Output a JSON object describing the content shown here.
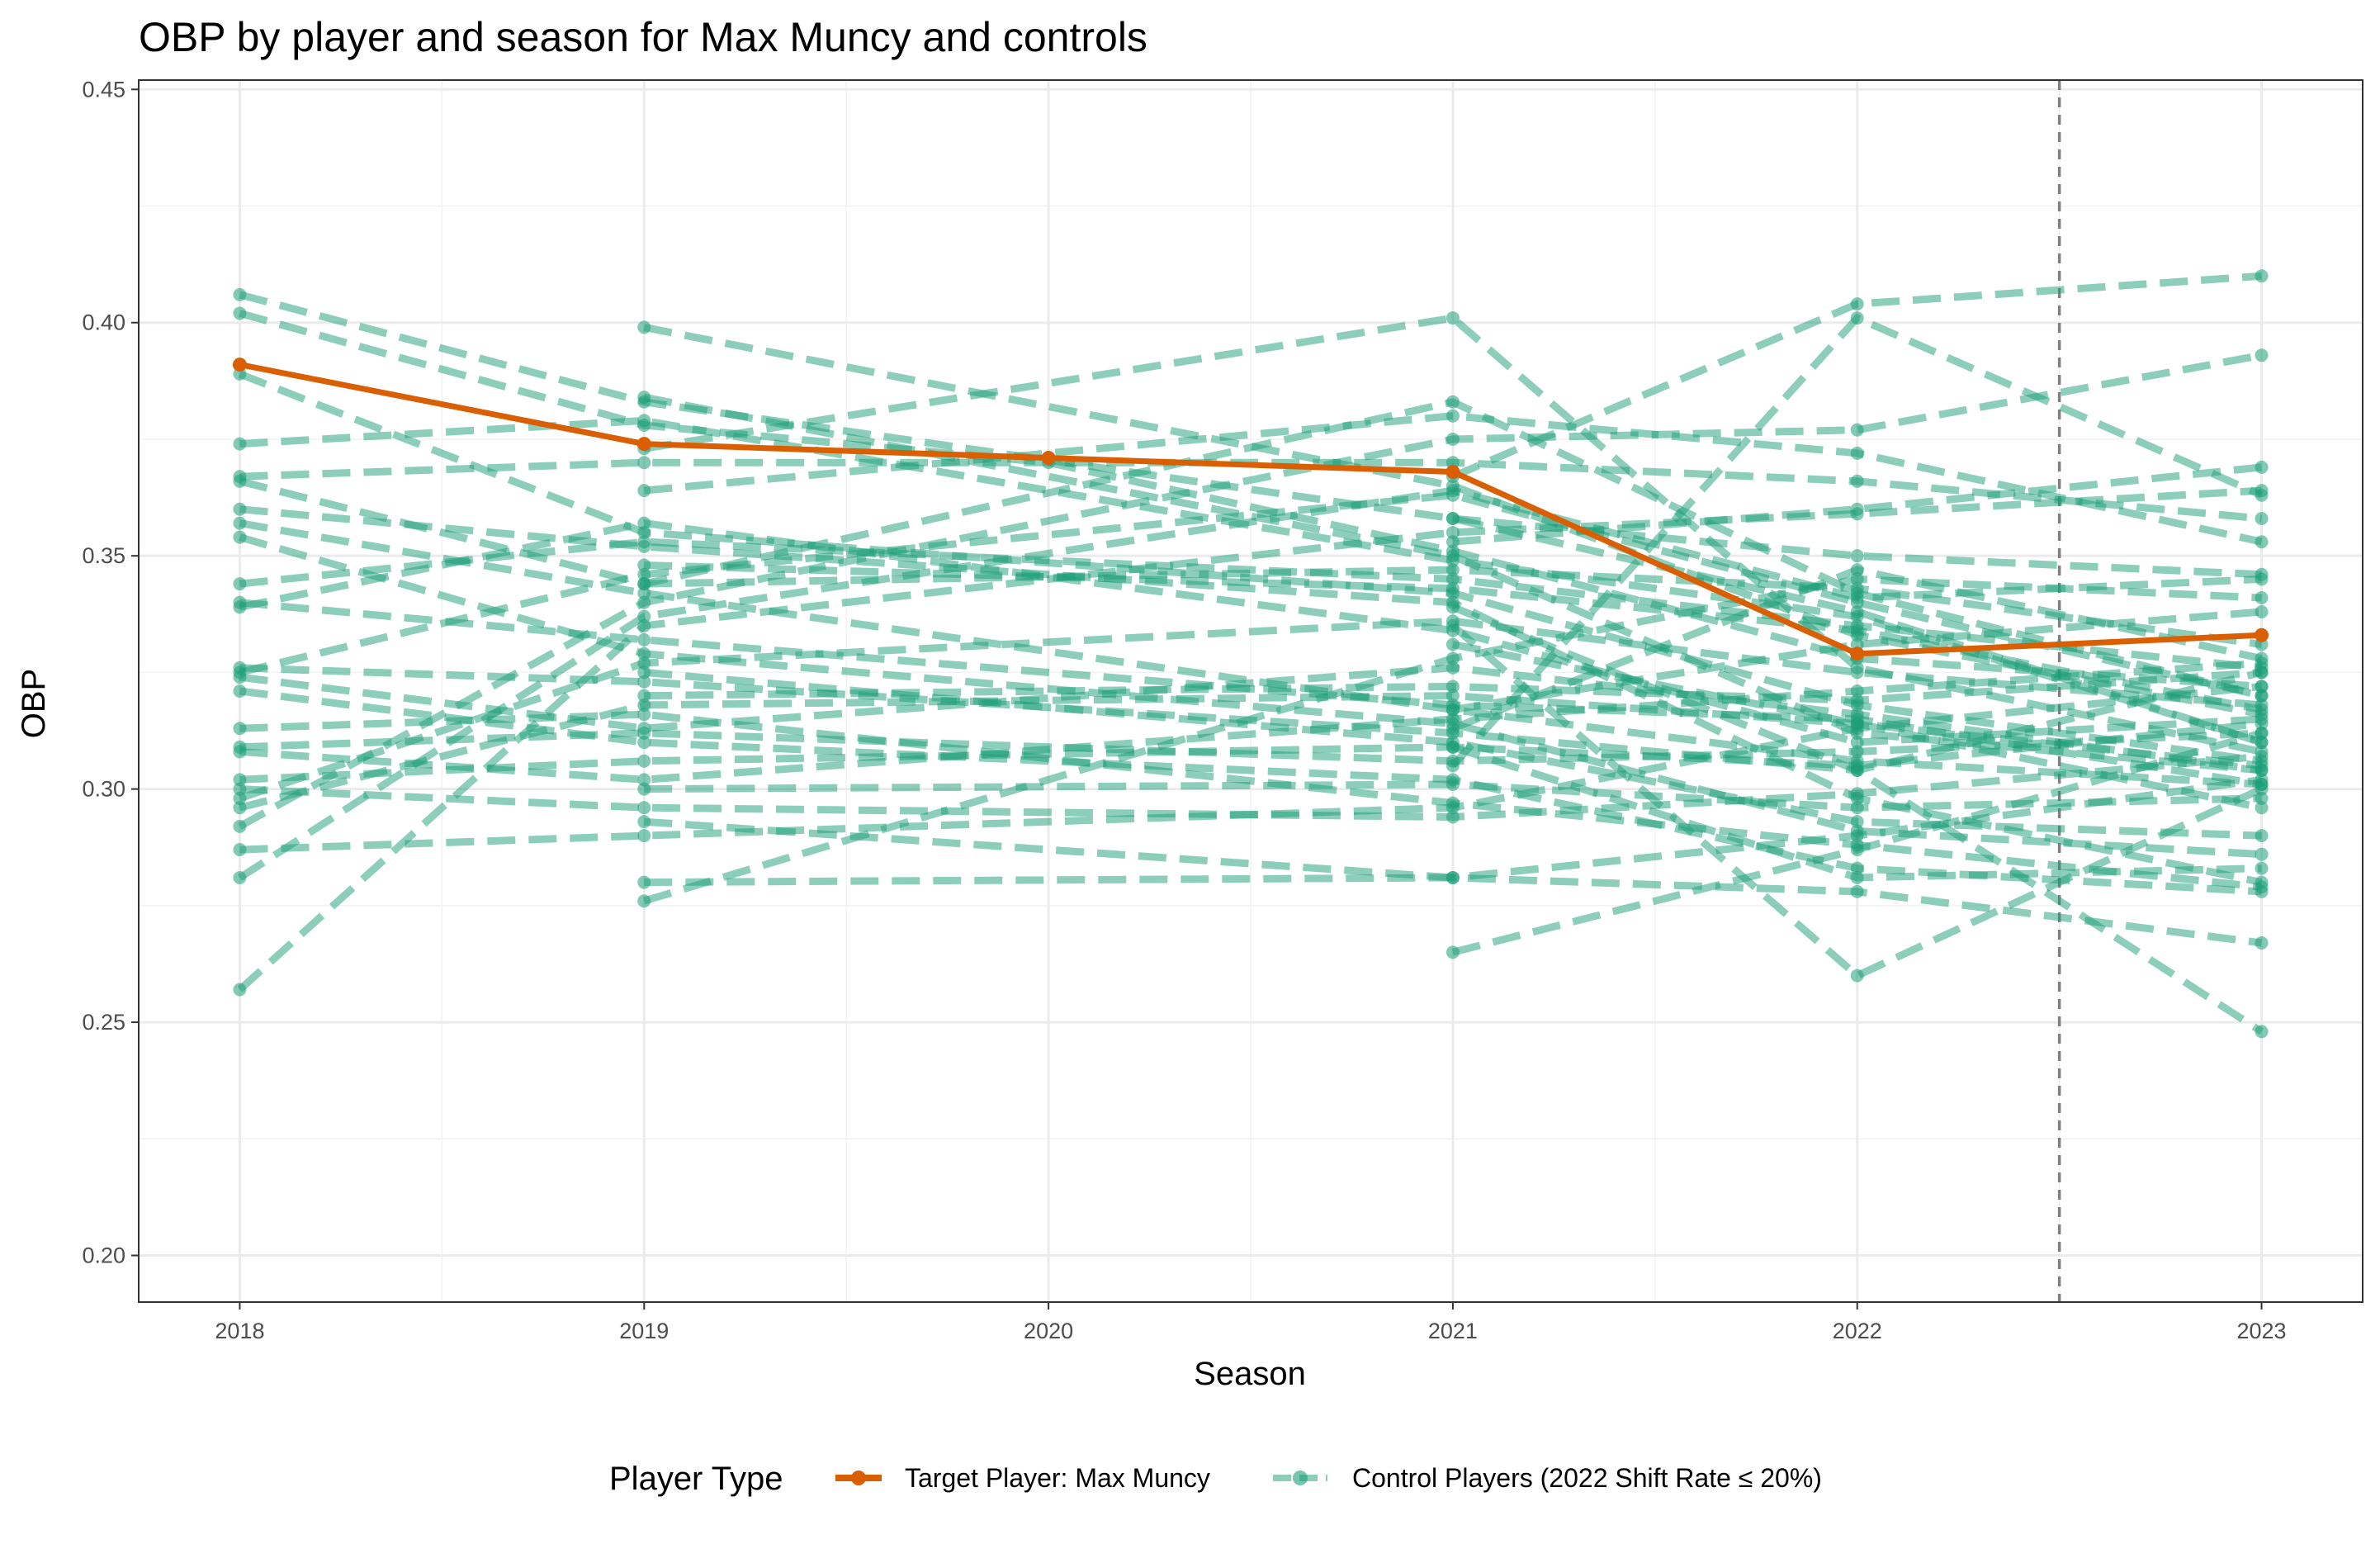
{
  "chart_data": {
    "type": "line",
    "title": "OBP by player and season for Max Muncy and controls",
    "xlabel": "Season",
    "ylabel": "OBP",
    "x_ticks": [
      2018,
      2019,
      2020,
      2021,
      2022,
      2023
    ],
    "x_tick_labels": [
      "2018",
      "2019",
      "2020",
      "2021",
      "2022",
      "2023"
    ],
    "y_ticks": [
      0.2,
      0.25,
      0.3,
      0.35,
      0.4,
      0.45
    ],
    "y_tick_labels": [
      "0.20",
      "0.25",
      "0.30",
      "0.35",
      "0.40",
      "0.45"
    ],
    "xlim": [
      2017.75,
      2023.25
    ],
    "ylim": [
      0.19,
      0.452
    ],
    "grid": true,
    "reference_line_x": 2022.5,
    "legend": {
      "title": "Player Type",
      "position": "bottom",
      "entries": [
        {
          "label": "Target Player: Max Muncy",
          "color": "#d95f02",
          "style": "solid"
        },
        {
          "label": "Control Players (2022 Shift Rate ≤ 20%)",
          "color": "#1b9e77",
          "style": "dashed"
        }
      ]
    },
    "series": [
      {
        "name": "Target Player: Max Muncy",
        "color": "#d95f02",
        "points": [
          [
            2018,
            0.391
          ],
          [
            2019,
            0.374
          ],
          [
            2020,
            0.371
          ],
          [
            2021,
            0.368
          ],
          [
            2022,
            0.329
          ],
          [
            2023,
            0.333
          ]
        ]
      },
      {
        "name": "Control Players (2022 Shift Rate ≤ 20%)",
        "color": "#1b9e77",
        "players": [
          [
            [
              2018,
              0.406
            ],
            [
              2019,
              0.383
            ],
            [
              2021,
              0.358
            ],
            [
              2022,
              0.338
            ],
            [
              2023,
              0.31
            ]
          ],
          [
            [
              2018,
              0.402
            ],
            [
              2019,
              0.378
            ],
            [
              2020,
              0.37
            ],
            [
              2021,
              0.351
            ],
            [
              2022,
              0.328
            ],
            [
              2023,
              0.322
            ]
          ],
          [
            [
              2018,
              0.389
            ],
            [
              2019,
              0.355
            ],
            [
              2021,
              0.342
            ],
            [
              2022,
              0.318
            ],
            [
              2023,
              0.306
            ]
          ],
          [
            [
              2018,
              0.374
            ],
            [
              2019,
              0.379
            ],
            [
              2021,
              0.349
            ],
            [
              2022,
              0.337
            ],
            [
              2023,
              0.31
            ]
          ],
          [
            [
              2018,
              0.367
            ],
            [
              2019,
              0.37
            ],
            [
              2021,
              0.37
            ],
            [
              2022,
              0.366
            ],
            [
              2023,
              0.358
            ]
          ],
          [
            [
              2018,
              0.366
            ],
            [
              2019,
              0.344
            ],
            [
              2021,
              0.383
            ],
            [
              2022,
              0.342
            ],
            [
              2023,
              0.32
            ]
          ],
          [
            [
              2018,
              0.36
            ],
            [
              2019,
              0.352
            ],
            [
              2021,
              0.34
            ],
            [
              2022,
              0.298
            ],
            [
              2023,
              0.28
            ]
          ],
          [
            [
              2018,
              0.357
            ],
            [
              2019,
              0.342
            ],
            [
              2021,
              0.317
            ],
            [
              2022,
              0.306
            ],
            [
              2023,
              0.301
            ]
          ],
          [
            [
              2018,
              0.354
            ],
            [
              2019,
              0.329
            ],
            [
              2021,
              0.314
            ],
            [
              2022,
              0.291
            ],
            [
              2023,
              0.286
            ]
          ],
          [
            [
              2018,
              0.344
            ],
            [
              2019,
              0.353
            ],
            [
              2021,
              0.345
            ],
            [
              2022,
              0.335
            ],
            [
              2023,
              0.326
            ]
          ],
          [
            [
              2018,
              0.34
            ],
            [
              2019,
              0.332
            ],
            [
              2021,
              0.318
            ],
            [
              2022,
              0.315
            ],
            [
              2023,
              0.301
            ]
          ],
          [
            [
              2018,
              0.339
            ],
            [
              2019,
              0.357
            ],
            [
              2021,
              0.334
            ],
            [
              2022,
              0.31
            ],
            [
              2023,
              0.315
            ]
          ],
          [
            [
              2018,
              0.326
            ],
            [
              2019,
              0.323
            ],
            [
              2021,
              0.312
            ],
            [
              2022,
              0.304
            ],
            [
              2023,
              0.325
            ]
          ],
          [
            [
              2018,
              0.325
            ],
            [
              2019,
              0.346
            ],
            [
              2021,
              0.363
            ],
            [
              2022,
              0.34
            ],
            [
              2023,
              0.32
            ]
          ],
          [
            [
              2018,
              0.324
            ],
            [
              2019,
              0.313
            ],
            [
              2021,
              0.326
            ],
            [
              2022,
              0.316
            ],
            [
              2023,
              0.304
            ]
          ],
          [
            [
              2018,
              0.321
            ],
            [
              2019,
              0.31
            ],
            [
              2021,
              0.302
            ],
            [
              2022,
              0.283
            ],
            [
              2023,
              0.278
            ]
          ],
          [
            [
              2018,
              0.313
            ],
            [
              2019,
              0.316
            ],
            [
              2021,
              0.297
            ],
            [
              2022,
              0.288
            ],
            [
              2023,
              0.279
            ]
          ],
          [
            [
              2018,
              0.309
            ],
            [
              2019,
              0.312
            ],
            [
              2021,
              0.306
            ],
            [
              2022,
              0.308
            ],
            [
              2023,
              0.312
            ]
          ],
          [
            [
              2018,
              0.308
            ],
            [
              2019,
              0.302
            ],
            [
              2021,
              0.315
            ],
            [
              2022,
              0.321
            ],
            [
              2023,
              0.327
            ]
          ],
          [
            [
              2018,
              0.302
            ],
            [
              2019,
              0.306
            ],
            [
              2021,
              0.309
            ],
            [
              2022,
              0.305
            ],
            [
              2023,
              0.314
            ]
          ],
          [
            [
              2018,
              0.3
            ],
            [
              2019,
              0.296
            ],
            [
              2021,
              0.294
            ],
            [
              2022,
              0.299
            ],
            [
              2023,
              0.307
            ]
          ],
          [
            [
              2018,
              0.298
            ],
            [
              2019,
              0.327
            ],
            [
              2021,
              0.336
            ],
            [
              2022,
              0.325
            ],
            [
              2023,
              0.318
            ]
          ],
          [
            [
              2018,
              0.296
            ],
            [
              2019,
              0.318
            ],
            [
              2021,
              0.32
            ],
            [
              2022,
              0.314
            ],
            [
              2023,
              0.305
            ]
          ],
          [
            [
              2018,
              0.292
            ],
            [
              2019,
              0.34
            ],
            [
              2021,
              0.375
            ],
            [
              2022,
              0.377
            ],
            [
              2023,
              0.393
            ]
          ],
          [
            [
              2018,
              0.287
            ],
            [
              2019,
              0.29
            ],
            [
              2021,
              0.296
            ],
            [
              2022,
              0.313
            ],
            [
              2023,
              0.322
            ]
          ],
          [
            [
              2018,
              0.281
            ],
            [
              2019,
              0.337
            ],
            [
              2021,
              0.364
            ],
            [
              2022,
              0.341
            ],
            [
              2023,
              0.345
            ]
          ],
          [
            [
              2018,
              0.257
            ],
            [
              2019,
              0.335
            ],
            [
              2021,
              0.355
            ],
            [
              2022,
              0.359
            ],
            [
              2023,
              0.364
            ]
          ],
          [
            [
              2019,
              0.399
            ],
            [
              2021,
              0.365
            ],
            [
              2022,
              0.333
            ],
            [
              2023,
              0.316
            ]
          ],
          [
            [
              2019,
              0.384
            ],
            [
              2021,
              0.35
            ],
            [
              2022,
              0.312
            ],
            [
              2023,
              0.304
            ]
          ],
          [
            [
              2019,
              0.373
            ],
            [
              2021,
              0.401
            ],
            [
              2022,
              0.326
            ],
            [
              2023,
              0.308
            ]
          ],
          [
            [
              2019,
              0.364
            ],
            [
              2021,
              0.38
            ],
            [
              2022,
              0.372
            ],
            [
              2023,
              0.353
            ]
          ],
          [
            [
              2019,
              0.348
            ],
            [
              2021,
              0.343
            ],
            [
              2022,
              0.334
            ],
            [
              2023,
              0.317
            ]
          ],
          [
            [
              2019,
              0.344
            ],
            [
              2021,
              0.347
            ],
            [
              2022,
              0.343
            ],
            [
              2023,
              0.331
            ]
          ],
          [
            [
              2019,
              0.325
            ],
            [
              2021,
              0.31
            ],
            [
              2022,
              0.293
            ],
            [
              2023,
              0.29
            ]
          ],
          [
            [
              2019,
              0.32
            ],
            [
              2021,
              0.322
            ],
            [
              2022,
              0.319
            ],
            [
              2023,
              0.325
            ]
          ],
          [
            [
              2019,
              0.3
            ],
            [
              2021,
              0.301
            ],
            [
              2022,
              0.296
            ],
            [
              2023,
              0.298
            ]
          ],
          [
            [
              2019,
              0.293
            ],
            [
              2021,
              0.281
            ],
            [
              2022,
              0.278
            ],
            [
              2023,
              0.267
            ]
          ],
          [
            [
              2019,
              0.28
            ],
            [
              2021,
              0.281
            ],
            [
              2022,
              0.29
            ],
            [
              2023,
              0.302
            ]
          ],
          [
            [
              2019,
              0.276
            ],
            [
              2021,
              0.328
            ],
            [
              2022,
              0.345
            ],
            [
              2023,
              0.341
            ]
          ],
          [
            [
              2021,
              0.367
            ],
            [
              2022,
              0.404
            ],
            [
              2023,
              0.41
            ]
          ],
          [
            [
              2021,
              0.353
            ],
            [
              2022,
              0.36
            ],
            [
              2023,
              0.369
            ]
          ],
          [
            [
              2021,
              0.339
            ],
            [
              2022,
              0.304
            ],
            [
              2023,
              0.248
            ]
          ],
          [
            [
              2021,
              0.335
            ],
            [
              2022,
              0.26
            ],
            [
              2023,
              0.3
            ]
          ],
          [
            [
              2021,
              0.305
            ],
            [
              2022,
              0.401
            ],
            [
              2023,
              0.363
            ]
          ],
          [
            [
              2021,
              0.265
            ],
            [
              2022,
              0.287
            ],
            [
              2023,
              0.312
            ]
          ],
          [
            [
              2021,
              0.317
            ],
            [
              2022,
              0.331
            ],
            [
              2023,
              0.338
            ]
          ],
          [
            [
              2021,
              0.313
            ],
            [
              2022,
              0.347
            ],
            [
              2023,
              0.328
            ]
          ],
          [
            [
              2021,
              0.309
            ],
            [
              2022,
              0.281
            ],
            [
              2023,
              0.283
            ]
          ],
          [
            [
              2021,
              0.331
            ],
            [
              2022,
              0.314
            ],
            [
              2023,
              0.296
            ]
          ],
          [
            [
              2021,
              0.358
            ],
            [
              2022,
              0.35
            ],
            [
              2023,
              0.346
            ]
          ]
        ]
      }
    ]
  }
}
